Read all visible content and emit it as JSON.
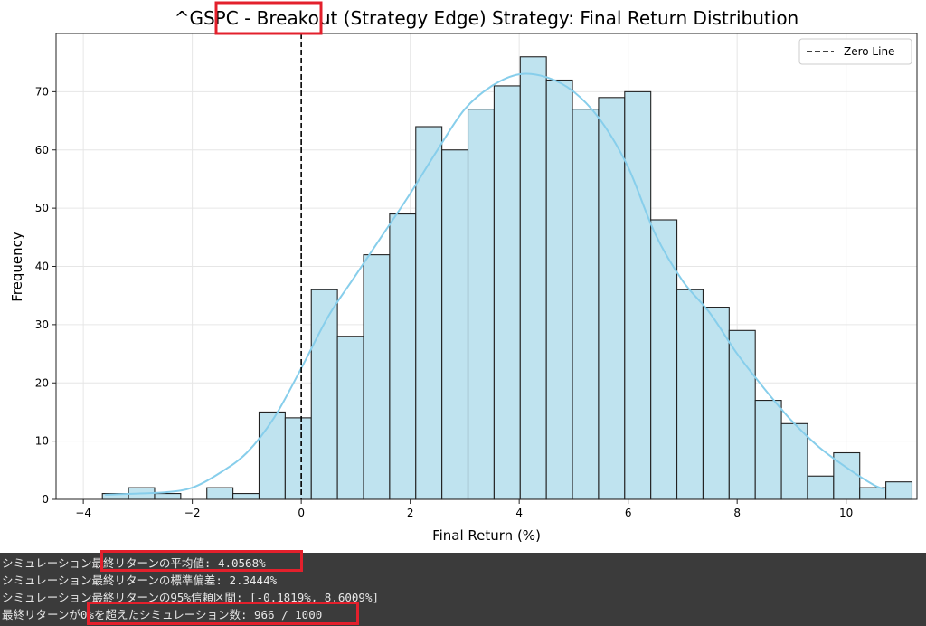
{
  "colors": {
    "bar_fill": "#bfe3ef",
    "bar_edge": "#222222",
    "kde_line": "#87ceeb",
    "zero_line": "#000000",
    "highlight": "#e3202c",
    "console_bg": "#3b3b3b",
    "console_text": "#e8e8e8"
  },
  "chart_data": {
    "type": "bar",
    "title": "^GSPC - Breakout (Strategy Edge) Strategy: Final Return Distribution",
    "title_prefix": "^GSPC - ",
    "title_highlight": "Breakout",
    "title_suffix": " (Strategy Edge) Strategy: Final Return Distribution",
    "xlabel": "Final Return (%)",
    "ylabel": "Frequency",
    "xlim": [
      -4.5,
      11.3
    ],
    "ylim": [
      0,
      80
    ],
    "xticks": [
      -4,
      -2,
      0,
      2,
      4,
      6,
      8,
      10
    ],
    "xtick_labels": [
      "−4",
      "−2",
      "0",
      "2",
      "4",
      "6",
      "8",
      "10"
    ],
    "yticks": [
      0,
      10,
      20,
      30,
      40,
      50,
      60,
      70
    ],
    "ytick_labels": [
      "0",
      "10",
      "20",
      "30",
      "40",
      "50",
      "60",
      "70"
    ],
    "grid": true,
    "legend": {
      "position": "top-right",
      "entries": [
        "Zero Line"
      ]
    },
    "bin_start": -3.65,
    "bin_width": 0.4793,
    "counts": [
      1,
      2,
      1,
      0,
      2,
      1,
      15,
      14,
      36,
      28,
      42,
      49,
      64,
      60,
      67,
      71,
      76,
      72,
      67,
      69,
      70,
      48,
      36,
      33,
      29,
      17,
      13,
      4,
      8,
      2,
      3
    ],
    "kde": {
      "x": [
        -3.6,
        -3.0,
        -2.5,
        -2.0,
        -1.5,
        -1.0,
        -0.5,
        0.0,
        0.5,
        1.0,
        1.5,
        2.0,
        2.5,
        3.0,
        3.5,
        4.0,
        4.5,
        5.0,
        5.5,
        6.0,
        6.5,
        7.0,
        7.5,
        8.0,
        8.5,
        9.0,
        9.5,
        10.0,
        10.5,
        10.7
      ],
      "y": [
        0.8,
        1.0,
        1.2,
        2.0,
        4.5,
        8.0,
        14.0,
        22.5,
        31.5,
        38.5,
        45.5,
        52.5,
        60.0,
        67.0,
        71.0,
        73.0,
        72.5,
        70.0,
        65.0,
        57.0,
        45.5,
        37.5,
        32.0,
        25.0,
        19.0,
        13.5,
        9.0,
        5.5,
        2.5,
        1.8
      ]
    },
    "zero_line_x": 0
  },
  "console": {
    "lines": [
      {
        "prefix": "シミュレーション",
        "highlight": "最終リターンの平均値: 4.0568%",
        "suffix": ""
      },
      {
        "prefix": "シミュレーション",
        "highlight": "",
        "suffix": "最終リターンの標準偏差: 2.3444%"
      },
      {
        "prefix": "シミュレーション",
        "highlight": "",
        "suffix": "最終リターンの95%信頼区間: [-0.1819%, 8.6009%]"
      },
      {
        "prefix": "最終リターンが",
        "highlight": "0%を超えたシミュレーション数: 966 / 1000",
        "suffix": ""
      }
    ]
  }
}
